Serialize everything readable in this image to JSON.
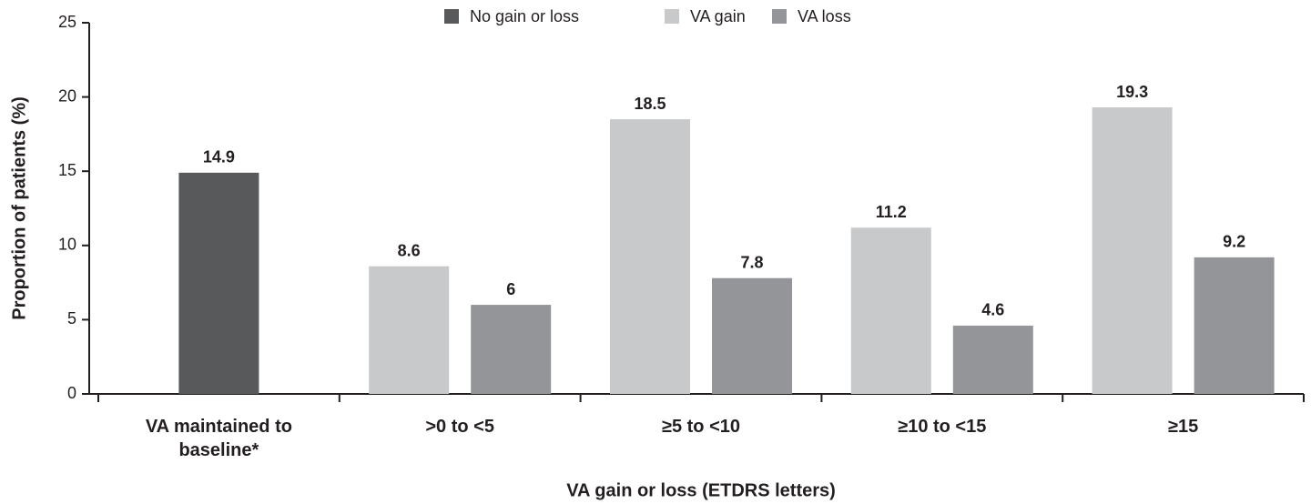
{
  "chart_data": {
    "type": "bar",
    "x_label": "VA gain or loss (ETDRS letters)",
    "y_label": "Proportion of patients (%)",
    "categories": [
      "VA maintained to baseline*",
      ">0 to <5",
      "≥5 to <10",
      "≥10 to <15",
      "≥15"
    ],
    "series": [
      {
        "name": "No gain or loss",
        "color": "#58595b",
        "values": [
          14.9,
          null,
          null,
          null,
          null
        ]
      },
      {
        "name": "VA gain",
        "color": "#c8c9cb",
        "values": [
          null,
          8.6,
          18.5,
          11.2,
          19.3
        ]
      },
      {
        "name": "VA loss",
        "color": "#939598",
        "values": [
          null,
          6,
          7.8,
          4.6,
          9.2
        ]
      }
    ],
    "ylim": [
      0,
      25
    ],
    "yticks": [
      0,
      5,
      10,
      15,
      20,
      25
    ],
    "grid": false,
    "legend": "top"
  }
}
